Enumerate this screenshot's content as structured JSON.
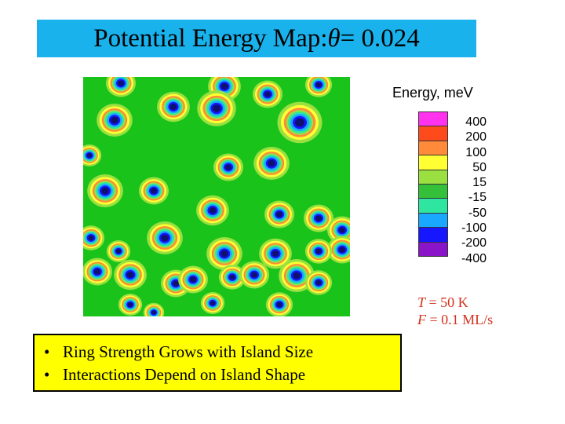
{
  "title": {
    "prefix": "Potential Energy Map: ",
    "symbol": "θ",
    "suffix": " = 0.024"
  },
  "legend": {
    "title": "Energy, meV",
    "entries": [
      {
        "label": "400",
        "color": "#ff33ee"
      },
      {
        "label": "200",
        "color": "#ff4a1c"
      },
      {
        "label": "100",
        "color": "#ff8a3a"
      },
      {
        "label": "50",
        "color": "#ffff33"
      },
      {
        "label": "15",
        "color": "#99e040"
      },
      {
        "label": "-15",
        "color": "#35c03a"
      },
      {
        "label": "-50",
        "color": "#2ee6a0"
      },
      {
        "label": "-100",
        "color": "#1aa8ff"
      },
      {
        "label": "-200",
        "color": "#1616ff"
      },
      {
        "label": "-400",
        "color": "#8a14c8"
      }
    ]
  },
  "params": {
    "t_symbol": "T",
    "t_value": " = 50 K",
    "f_symbol": "F",
    "f_value": " = 0.1 ML/s"
  },
  "bullets": [
    "Ring Strength Grows with Island Size",
    "Interactions Depend on Island Shape"
  ],
  "bullet_glyph": "•",
  "map": {
    "background_color": "#19c31a",
    "islands": [
      [
        48,
        8,
        1.0
      ],
      [
        180,
        12,
        1.1
      ],
      [
        235,
        22,
        1.0
      ],
      [
        300,
        10,
        0.9
      ],
      [
        40,
        55,
        1.2
      ],
      [
        115,
        38,
        1.1
      ],
      [
        170,
        40,
        1.3
      ],
      [
        276,
        58,
        1.5
      ],
      [
        8,
        100,
        0.8
      ],
      [
        240,
        110,
        1.2
      ],
      [
        185,
        115,
        1.0
      ],
      [
        28,
        145,
        1.2
      ],
      [
        90,
        145,
        1.0
      ],
      [
        165,
        170,
        1.1
      ],
      [
        250,
        175,
        1.0
      ],
      [
        300,
        180,
        1.0
      ],
      [
        10,
        205,
        0.9
      ],
      [
        104,
        205,
        1.2
      ],
      [
        180,
        225,
        1.2
      ],
      [
        245,
        225,
        1.1
      ],
      [
        190,
        255,
        0.9
      ],
      [
        330,
        195,
        1.0
      ],
      [
        330,
        220,
        1.0
      ],
      [
        18,
        248,
        1.0
      ],
      [
        60,
        252,
        1.1
      ],
      [
        118,
        263,
        1.0
      ],
      [
        140,
        258,
        1.0
      ],
      [
        218,
        252,
        1.0
      ],
      [
        272,
        253,
        1.2
      ],
      [
        300,
        262,
        0.9
      ],
      [
        45,
        222,
        0.8
      ],
      [
        300,
        222,
        0.9
      ],
      [
        60,
        290,
        0.8
      ],
      [
        165,
        288,
        0.8
      ],
      [
        250,
        290,
        0.9
      ],
      [
        90,
        300,
        0.7
      ]
    ]
  }
}
